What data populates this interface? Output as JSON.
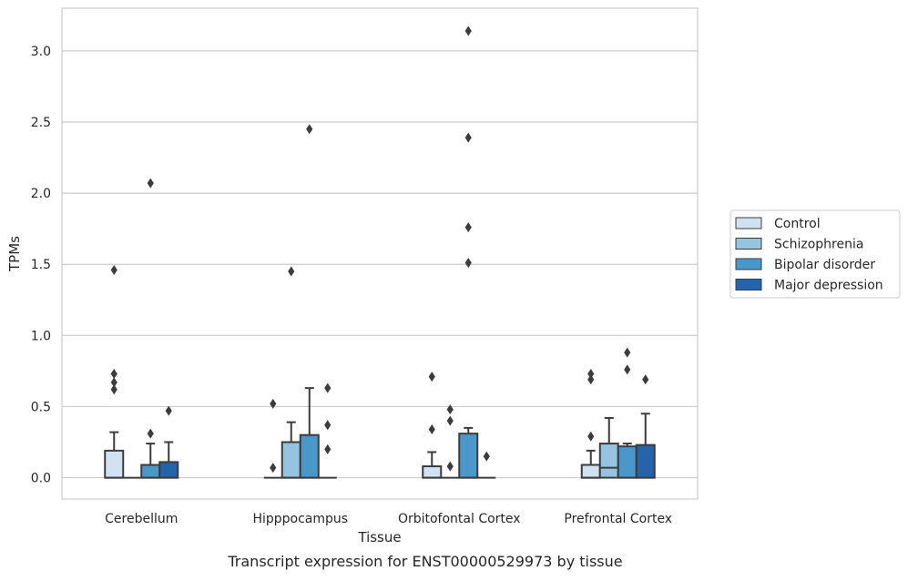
{
  "chart_data": {
    "type": "box",
    "caption": "Transcript expression for ENST00000529973 by tissue",
    "xlabel": "Tissue",
    "ylabel": "TPMs",
    "ylim": [
      -0.15,
      3.3
    ],
    "yticks": [
      0.0,
      0.5,
      1.0,
      1.5,
      2.0,
      2.5,
      3.0
    ],
    "ytick_labels": [
      "0.0",
      "0.5",
      "1.0",
      "1.5",
      "2.0",
      "2.5",
      "3.0"
    ],
    "grid": "horizontal",
    "legend_position": "right",
    "categories": [
      "Cerebellum",
      "Hipppocampus",
      "Orbitofontal Cortex",
      "Prefrontal Cortex"
    ],
    "series": [
      {
        "name": "Control",
        "color": "#d0e1f2",
        "boxes": [
          {
            "q1": 0.0,
            "median": 0.0,
            "q3": 0.19,
            "whisker_low": 0.0,
            "whisker_high": 0.32,
            "outliers": [
              1.46,
              0.73,
              0.67,
              0.62
            ]
          },
          {
            "q1": 0.0,
            "median": 0.0,
            "q3": 0.0,
            "whisker_low": 0.0,
            "whisker_high": 0.0,
            "outliers": [
              0.52,
              0.07
            ]
          },
          {
            "q1": 0.0,
            "median": 0.0,
            "q3": 0.08,
            "whisker_low": 0.0,
            "whisker_high": 0.18,
            "outliers": [
              0.71,
              0.34
            ]
          },
          {
            "q1": 0.0,
            "median": 0.0,
            "q3": 0.09,
            "whisker_low": 0.0,
            "whisker_high": 0.19,
            "outliers": [
              0.73,
              0.69,
              0.29
            ]
          }
        ]
      },
      {
        "name": "Schizophrenia",
        "color": "#94c4df",
        "boxes": [
          {
            "q1": 0.0,
            "median": 0.0,
            "q3": 0.0,
            "whisker_low": 0.0,
            "whisker_high": 0.0,
            "outliers": []
          },
          {
            "q1": 0.0,
            "median": 0.0,
            "q3": 0.25,
            "whisker_low": 0.0,
            "whisker_high": 0.39,
            "outliers": [
              1.45
            ]
          },
          {
            "q1": 0.0,
            "median": 0.0,
            "q3": 0.0,
            "whisker_low": 0.0,
            "whisker_high": 0.0,
            "outliers": [
              0.48,
              0.4,
              0.08
            ]
          },
          {
            "q1": 0.0,
            "median": 0.07,
            "q3": 0.24,
            "whisker_low": 0.0,
            "whisker_high": 0.42,
            "outliers": []
          }
        ]
      },
      {
        "name": "Bipolar disorder",
        "color": "#4a98c9",
        "boxes": [
          {
            "q1": 0.0,
            "median": 0.0,
            "q3": 0.09,
            "whisker_low": 0.0,
            "whisker_high": 0.24,
            "outliers": [
              2.07,
              0.31
            ]
          },
          {
            "q1": 0.0,
            "median": 0.0,
            "q3": 0.3,
            "whisker_low": 0.0,
            "whisker_high": 0.63,
            "outliers": [
              2.45
            ]
          },
          {
            "q1": 0.0,
            "median": 0.0,
            "q3": 0.31,
            "whisker_low": 0.0,
            "whisker_high": 0.35,
            "outliers": [
              3.14,
              2.39,
              1.76,
              1.51
            ]
          },
          {
            "q1": 0.0,
            "median": 0.0,
            "q3": 0.22,
            "whisker_low": 0.0,
            "whisker_high": 0.24,
            "outliers": [
              0.88,
              0.76
            ]
          }
        ]
      },
      {
        "name": "Major depression",
        "color": "#2464ab",
        "boxes": [
          {
            "q1": 0.0,
            "median": 0.0,
            "q3": 0.11,
            "whisker_low": 0.0,
            "whisker_high": 0.25,
            "outliers": [
              0.47
            ]
          },
          {
            "q1": 0.0,
            "median": 0.0,
            "q3": 0.0,
            "whisker_low": 0.0,
            "whisker_high": 0.0,
            "outliers": [
              0.63,
              0.37,
              0.2
            ]
          },
          {
            "q1": 0.0,
            "median": 0.0,
            "q3": 0.0,
            "whisker_low": 0.0,
            "whisker_high": 0.0,
            "outliers": [
              0.15
            ]
          },
          {
            "q1": 0.0,
            "median": 0.0,
            "q3": 0.23,
            "whisker_low": 0.0,
            "whisker_high": 0.45,
            "outliers": [
              0.69
            ]
          }
        ]
      }
    ]
  }
}
